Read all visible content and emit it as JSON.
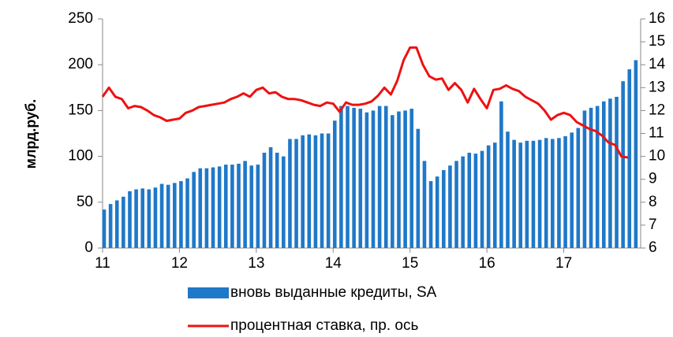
{
  "chart_data": {
    "type": "bar_line",
    "ylabel": "млрд.руб.",
    "xlim": [
      11,
      18
    ],
    "xticks": [
      11,
      12,
      13,
      14,
      15,
      16,
      17
    ],
    "ylim": [
      0,
      250
    ],
    "yticks": [
      0,
      50,
      100,
      150,
      200,
      250
    ],
    "y2lim": [
      6,
      16
    ],
    "y2ticks": [
      6,
      7,
      8,
      9,
      10,
      11,
      12,
      13,
      14,
      15,
      16
    ],
    "x": [
      11,
      11.0833,
      11.1667,
      11.25,
      11.3333,
      11.4167,
      11.5,
      11.5833,
      11.6667,
      11.75,
      11.8333,
      11.9167,
      12,
      12.0833,
      12.1667,
      12.25,
      12.3333,
      12.4167,
      12.5,
      12.5833,
      12.6667,
      12.75,
      12.8333,
      12.9167,
      13,
      13.0833,
      13.1667,
      13.25,
      13.3333,
      13.4167,
      13.5,
      13.5833,
      13.6667,
      13.75,
      13.8333,
      13.9167,
      14,
      14.0833,
      14.1667,
      14.25,
      14.3333,
      14.4167,
      14.5,
      14.5833,
      14.6667,
      14.75,
      14.8333,
      14.9167,
      15,
      15.0833,
      15.1667,
      15.25,
      15.3333,
      15.4167,
      15.5,
      15.5833,
      15.6667,
      15.75,
      15.8333,
      15.9167,
      16,
      16.0833,
      16.1667,
      16.25,
      16.3333,
      16.4167,
      16.5,
      16.5833,
      16.6667,
      16.75,
      16.8333,
      16.9167,
      17,
      17.0833,
      17.1667,
      17.25,
      17.3333,
      17.4167,
      17.5,
      17.5833,
      17.6667,
      17.75,
      17.8333,
      17.9167
    ],
    "series": [
      {
        "name": "вновь выданные кредиты, SA",
        "color": "#1f78c8",
        "values": [
          42,
          48,
          52,
          56,
          62,
          64,
          65,
          64,
          66,
          70,
          69,
          71,
          73,
          76,
          83,
          87,
          87,
          88,
          89,
          91,
          91,
          92,
          95,
          90,
          91,
          104,
          110,
          104,
          100,
          119,
          119,
          123,
          124,
          123,
          125,
          125,
          139,
          155,
          155,
          153,
          152,
          148,
          150,
          155,
          155,
          145,
          149,
          150,
          152,
          130,
          95,
          73,
          78,
          85,
          90,
          95,
          100,
          104,
          103,
          106,
          112,
          115,
          160,
          127,
          118,
          115,
          117,
          117,
          118,
          120,
          119,
          120,
          122,
          126,
          131,
          150,
          153,
          155,
          160,
          163,
          165,
          182,
          195,
          205
        ]
      },
      {
        "name": "процентная ставка, пр. ось",
        "color": "#ee1111",
        "axis": "y2",
        "values": [
          12.6,
          13.0,
          12.6,
          12.5,
          12.1,
          12.2,
          12.15,
          12.0,
          11.8,
          11.7,
          11.55,
          11.6,
          11.65,
          11.9,
          12.0,
          12.15,
          12.2,
          12.25,
          12.3,
          12.35,
          12.5,
          12.6,
          12.75,
          12.6,
          12.9,
          13.0,
          12.75,
          12.8,
          12.6,
          12.5,
          12.5,
          12.45,
          12.35,
          12.25,
          12.2,
          12.35,
          12.3,
          11.95,
          12.35,
          12.25,
          12.25,
          12.3,
          12.4,
          12.65,
          13.0,
          12.7,
          13.3,
          14.2,
          14.75,
          14.75,
          14.0,
          13.5,
          13.35,
          13.4,
          12.9,
          13.2,
          12.9,
          12.35,
          12.95,
          12.5,
          12.1,
          12.9,
          12.95,
          13.1,
          12.95,
          12.85,
          12.6,
          12.45,
          12.3,
          12.0,
          11.6,
          11.8,
          11.9,
          11.8,
          11.5,
          11.35,
          11.2,
          11.1,
          10.9,
          10.6,
          10.5,
          10.0,
          9.95,
          null
        ]
      }
    ]
  }
}
